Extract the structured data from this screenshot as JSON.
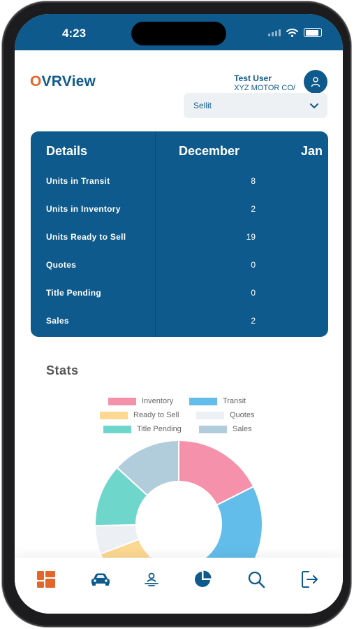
{
  "status_bar": {
    "time": "4:23"
  },
  "header": {
    "logo_o": "O",
    "logo_rest": "VRView",
    "user_name": "Test User",
    "company": "XYZ MOTOR CO/"
  },
  "dealer_select": {
    "value": "Sellit"
  },
  "details_table": {
    "header_label": "Details",
    "month_current": "December",
    "month_next": "Jan",
    "rows": [
      {
        "label": "Units in Transit",
        "value": "8"
      },
      {
        "label": "Units in Inventory",
        "value": "2"
      },
      {
        "label": "Units Ready to Sell",
        "value": "19"
      },
      {
        "label": "Quotes",
        "value": "0"
      },
      {
        "label": "Title Pending",
        "value": "0"
      },
      {
        "label": "Sales",
        "value": "2"
      }
    ]
  },
  "stats": {
    "title": "Stats",
    "legend": [
      {
        "label": "Inventory",
        "color": "#f591aa"
      },
      {
        "label": "Transit",
        "color": "#63bdea"
      },
      {
        "label": "Ready to Sell",
        "color": "#fcd892"
      },
      {
        "label": "Quotes",
        "color": "#eceff3"
      },
      {
        "label": "Title Pending",
        "color": "#6fd6cc"
      },
      {
        "label": "Sales",
        "color": "#b1ccdb"
      }
    ]
  },
  "chart_data": {
    "type": "pie",
    "series": [
      {
        "categories": [
          "Inventory",
          "Transit",
          "Ready to Sell",
          "Quotes",
          "Title Pending",
          "Sales"
        ],
        "values": [
          16,
          40,
          7,
          5,
          11,
          12
        ]
      }
    ],
    "legend_position": "top"
  },
  "bottom_nav": {
    "items": [
      {
        "icon": "dashboard-icon",
        "color": "#e3662b"
      },
      {
        "icon": "car-icon",
        "color": "#0f5a8c"
      },
      {
        "icon": "person-pin-icon",
        "color": "#0f5a8c"
      },
      {
        "icon": "pie-chart-icon",
        "color": "#0f5a8c"
      },
      {
        "icon": "search-icon",
        "color": "#0f5a8c"
      },
      {
        "icon": "logout-icon",
        "color": "#0f5a8c"
      }
    ]
  }
}
